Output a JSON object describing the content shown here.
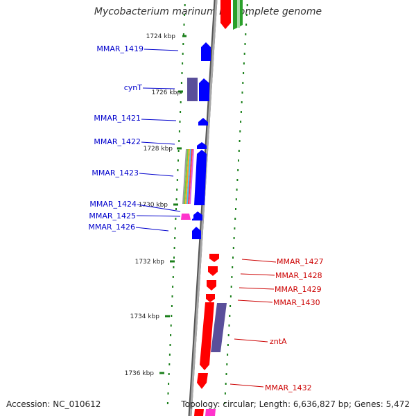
{
  "title": "Mycobacterium marinum M, complete genome",
  "accession": "Accession: NC_010612",
  "info": "Topology: circular; Length: 6,636,827 bp; Genes: 5,472",
  "colors": {
    "forward": "#0000ff",
    "reverse": "#ff0000",
    "slate": "#5a4f9a",
    "rna": "#ff33cc",
    "backbone": "#999999",
    "tick": "#1a7f1a",
    "green": "#2aa02a"
  },
  "ticks": [
    "1724 kbp",
    "1726 kbp",
    "1728 kbp",
    "1730 kbp",
    "1732 kbp",
    "1734 kbp",
    "1736 kbp"
  ],
  "forward_genes": [
    "MMAR_1419",
    "cynT",
    "MMAR_1421",
    "MMAR_1422",
    "MMAR_1423",
    "MMAR_1424",
    "MMAR_1425",
    "MMAR_1426"
  ],
  "reverse_genes": [
    "MMAR_1427",
    "MMAR_1428",
    "MMAR_1429",
    "MMAR_1430",
    "zntA",
    "MMAR_1432"
  ]
}
